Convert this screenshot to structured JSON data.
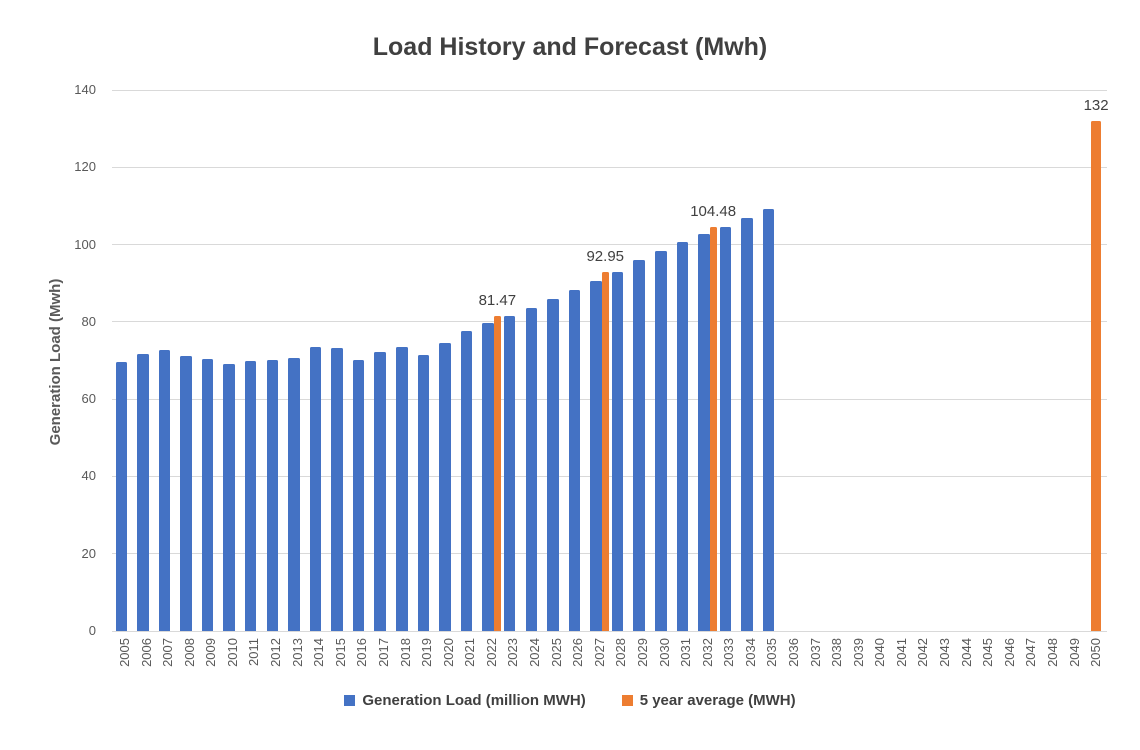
{
  "chart_data": {
    "type": "bar",
    "title": "Load History and Forecast (Mwh)",
    "ylabel": "Generation Load (Mwh)",
    "xlabel": "",
    "ylim": [
      0,
      140
    ],
    "yticks": [
      0,
      20,
      40,
      60,
      80,
      100,
      120,
      140
    ],
    "ytick_labels": [
      "0",
      "20",
      "40",
      "60",
      "80",
      "100",
      "120",
      "140"
    ],
    "grid": true,
    "gridline_color": "#d9d9d9",
    "background": "#ffffff",
    "legend_position": "bottom-center",
    "categories": [
      "2005",
      "2006",
      "2007",
      "2008",
      "2009",
      "2010",
      "2011",
      "2012",
      "2013",
      "2014",
      "2015",
      "2016",
      "2017",
      "2018",
      "2019",
      "2020",
      "2021",
      "2022",
      "2023",
      "2024",
      "2025",
      "2026",
      "2027",
      "2028",
      "2029",
      "2030",
      "2031",
      "2032",
      "2033",
      "2034",
      "2035",
      "2036",
      "2037",
      "2038",
      "2039",
      "2040",
      "2041",
      "2042",
      "2043",
      "2044",
      "2045",
      "2046",
      "2047",
      "2048",
      "2049",
      "2050"
    ],
    "series": [
      {
        "name": "Generation Load (million MWH)",
        "color": "#4472C4",
        "values": [
          69.7,
          71.8,
          72.8,
          71.2,
          70.3,
          69,
          70,
          70.2,
          70.6,
          73.6,
          73.2,
          70.1,
          72.1,
          73.4,
          71.3,
          74.6,
          77.6,
          79.6,
          81.6,
          83.7,
          86,
          88.2,
          90.6,
          93,
          96,
          98.4,
          100.7,
          102.7,
          104.6,
          106.9,
          109.1,
          null,
          null,
          null,
          null,
          null,
          null,
          null,
          null,
          null,
          null,
          null,
          null,
          null,
          null,
          null
        ]
      },
      {
        "name": "5 year average (MWH)",
        "color": "#ED7D31",
        "values": [
          null,
          null,
          null,
          null,
          null,
          null,
          null,
          null,
          null,
          null,
          null,
          null,
          null,
          null,
          null,
          null,
          null,
          81.47,
          null,
          null,
          null,
          null,
          92.95,
          null,
          null,
          null,
          null,
          104.48,
          null,
          null,
          null,
          null,
          null,
          null,
          null,
          null,
          null,
          null,
          null,
          null,
          null,
          null,
          null,
          null,
          null,
          132
        ],
        "value_labels": [
          null,
          null,
          null,
          null,
          null,
          null,
          null,
          null,
          null,
          null,
          null,
          null,
          null,
          null,
          null,
          null,
          null,
          "81.47",
          null,
          null,
          null,
          null,
          "92.95",
          null,
          null,
          null,
          null,
          "104.48",
          null,
          null,
          null,
          null,
          null,
          null,
          null,
          null,
          null,
          null,
          null,
          null,
          null,
          null,
          null,
          null,
          null,
          "132"
        ]
      }
    ]
  },
  "text_colors": {
    "title": "#404040",
    "axis_labels": "#595959",
    "data_labels": "#404040",
    "legend": "#404040"
  }
}
